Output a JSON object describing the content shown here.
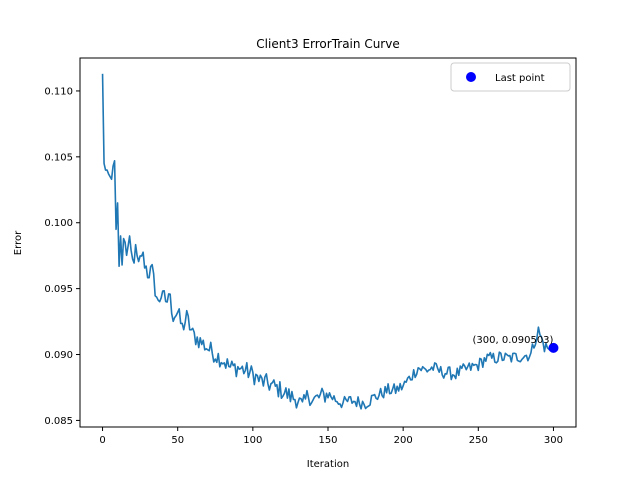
{
  "chart_data": {
    "type": "line",
    "title": "Client3 ErrorTrain Curve",
    "xlabel": "Iteration",
    "ylabel": "Error",
    "xlim": [
      -15,
      315
    ],
    "ylim": [
      0.0845,
      0.1125
    ],
    "xticks": [
      0,
      50,
      100,
      150,
      200,
      250,
      300
    ],
    "yticks": [
      0.085,
      0.09,
      0.095,
      0.1,
      0.105,
      0.11
    ],
    "ytick_labels": [
      "0.085",
      "0.090",
      "0.095",
      "0.100",
      "0.105",
      "0.110"
    ],
    "grid": false,
    "legend": {
      "position": "top-right",
      "entries": [
        "Last point"
      ]
    },
    "line_color": "#1f77b4",
    "marker_color": "#0000ff",
    "anchors": [
      [
        0,
        0.1113
      ],
      [
        1,
        0.1045
      ],
      [
        2,
        0.104
      ],
      [
        3,
        0.104
      ],
      [
        4,
        0.1037
      ],
      [
        5,
        0.1035
      ],
      [
        6,
        0.1033
      ],
      [
        7,
        0.1043
      ],
      [
        8,
        0.1047
      ],
      [
        9,
        0.0995
      ],
      [
        10,
        0.1015
      ],
      [
        11,
        0.0967
      ],
      [
        12,
        0.099
      ],
      [
        13,
        0.0968
      ],
      [
        14,
        0.0988
      ],
      [
        16,
        0.0978
      ],
      [
        18,
        0.0983
      ],
      [
        20,
        0.097
      ],
      [
        22,
        0.0978
      ],
      [
        24,
        0.0966
      ],
      [
        26,
        0.0977
      ],
      [
        28,
        0.097
      ],
      [
        30,
        0.0962
      ],
      [
        33,
        0.0963
      ],
      [
        35,
        0.095
      ],
      [
        37,
        0.0938
      ],
      [
        40,
        0.095
      ],
      [
        42,
        0.0935
      ],
      [
        44,
        0.0947
      ],
      [
        47,
        0.093
      ],
      [
        50,
        0.0932
      ],
      [
        53,
        0.092
      ],
      [
        56,
        0.0928
      ],
      [
        60,
        0.0915
      ],
      [
        65,
        0.091
      ],
      [
        70,
        0.0905
      ],
      [
        75,
        0.09
      ],
      [
        80,
        0.0896
      ],
      [
        85,
        0.089
      ],
      [
        90,
        0.089
      ],
      [
        95,
        0.0888
      ],
      [
        100,
        0.0885
      ],
      [
        105,
        0.088
      ],
      [
        110,
        0.0878
      ],
      [
        115,
        0.0875
      ],
      [
        120,
        0.0872
      ],
      [
        125,
        0.0868
      ],
      [
        130,
        0.0866
      ],
      [
        133,
        0.086
      ],
      [
        137,
        0.087
      ],
      [
        140,
        0.0865
      ],
      [
        145,
        0.0868
      ],
      [
        150,
        0.087
      ],
      [
        155,
        0.0866
      ],
      [
        160,
        0.0863
      ],
      [
        165,
        0.0865
      ],
      [
        170,
        0.0864
      ],
      [
        175,
        0.0863
      ],
      [
        180,
        0.0867
      ],
      [
        185,
        0.087
      ],
      [
        190,
        0.0873
      ],
      [
        195,
        0.0873
      ],
      [
        200,
        0.0876
      ],
      [
        205,
        0.0883
      ],
      [
        210,
        0.089
      ],
      [
        215,
        0.0888
      ],
      [
        220,
        0.089
      ],
      [
        225,
        0.0887
      ],
      [
        230,
        0.0886
      ],
      [
        235,
        0.0885
      ],
      [
        240,
        0.0888
      ],
      [
        245,
        0.089
      ],
      [
        250,
        0.0892
      ],
      [
        255,
        0.0897
      ],
      [
        260,
        0.0897
      ],
      [
        265,
        0.0898
      ],
      [
        270,
        0.0897
      ],
      [
        275,
        0.0898
      ],
      [
        280,
        0.0899
      ],
      [
        285,
        0.09
      ],
      [
        288,
        0.0912
      ],
      [
        290,
        0.0918
      ],
      [
        292,
        0.0912
      ],
      [
        294,
        0.0906
      ],
      [
        296,
        0.0905
      ],
      [
        298,
        0.0903
      ],
      [
        300,
        0.0905
      ]
    ],
    "noise_amplitude": 0.0007,
    "last_point": {
      "x": 300,
      "y": 0.090503,
      "label": "(300, 0.090503)"
    }
  }
}
